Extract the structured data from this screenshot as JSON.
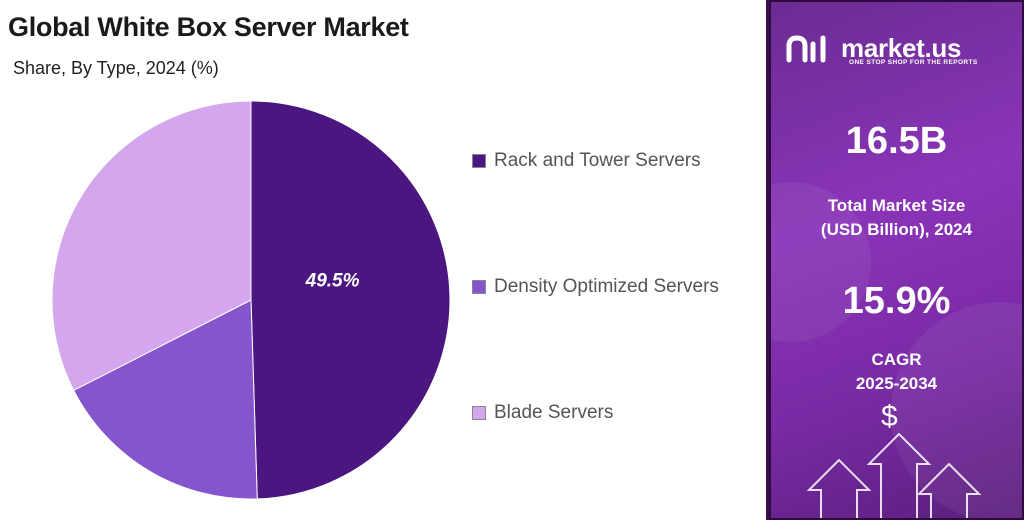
{
  "chart_title": "Global White Box Server Market",
  "chart_subtitle": "Share, By Type, 2024 (%)",
  "chart_data": {
    "type": "pie",
    "title": "Global White Box Server Market",
    "subtitle": "Share, By Type, 2024 (%)",
    "categories": [
      "Rack and Tower Servers",
      "Density Optimized Servers",
      "Blade Servers"
    ],
    "values": [
      49.5,
      18.0,
      32.5
    ],
    "colors": [
      "#4b1680",
      "#8455cc",
      "#d3a6ee"
    ],
    "data_labels": [
      "49.5%",
      "",
      ""
    ],
    "legend_placement": "right"
  },
  "legend": [
    {
      "label": "Rack and Tower Servers",
      "color": "#4b1680"
    },
    {
      "label": "Density Optimized Servers",
      "color": "#8455cc"
    },
    {
      "label": "Blade Servers",
      "color": "#d3a6ee"
    }
  ],
  "sidebar": {
    "brand_name": "market.us",
    "brand_tagline": "ONE STOP SHOP FOR THE REPORTS",
    "market_size_value": "16.5B",
    "market_size_label_line1": "Total Market Size",
    "market_size_label_line2": "(USD Billion), 2024",
    "cagr_value": "15.9%",
    "cagr_label_line1": "CAGR",
    "cagr_label_line2": "2025-2034",
    "dollar_symbol": "$"
  },
  "colors": {
    "accent_dark": "#4b1680",
    "sidebar_purple": "#7a2aa5"
  }
}
